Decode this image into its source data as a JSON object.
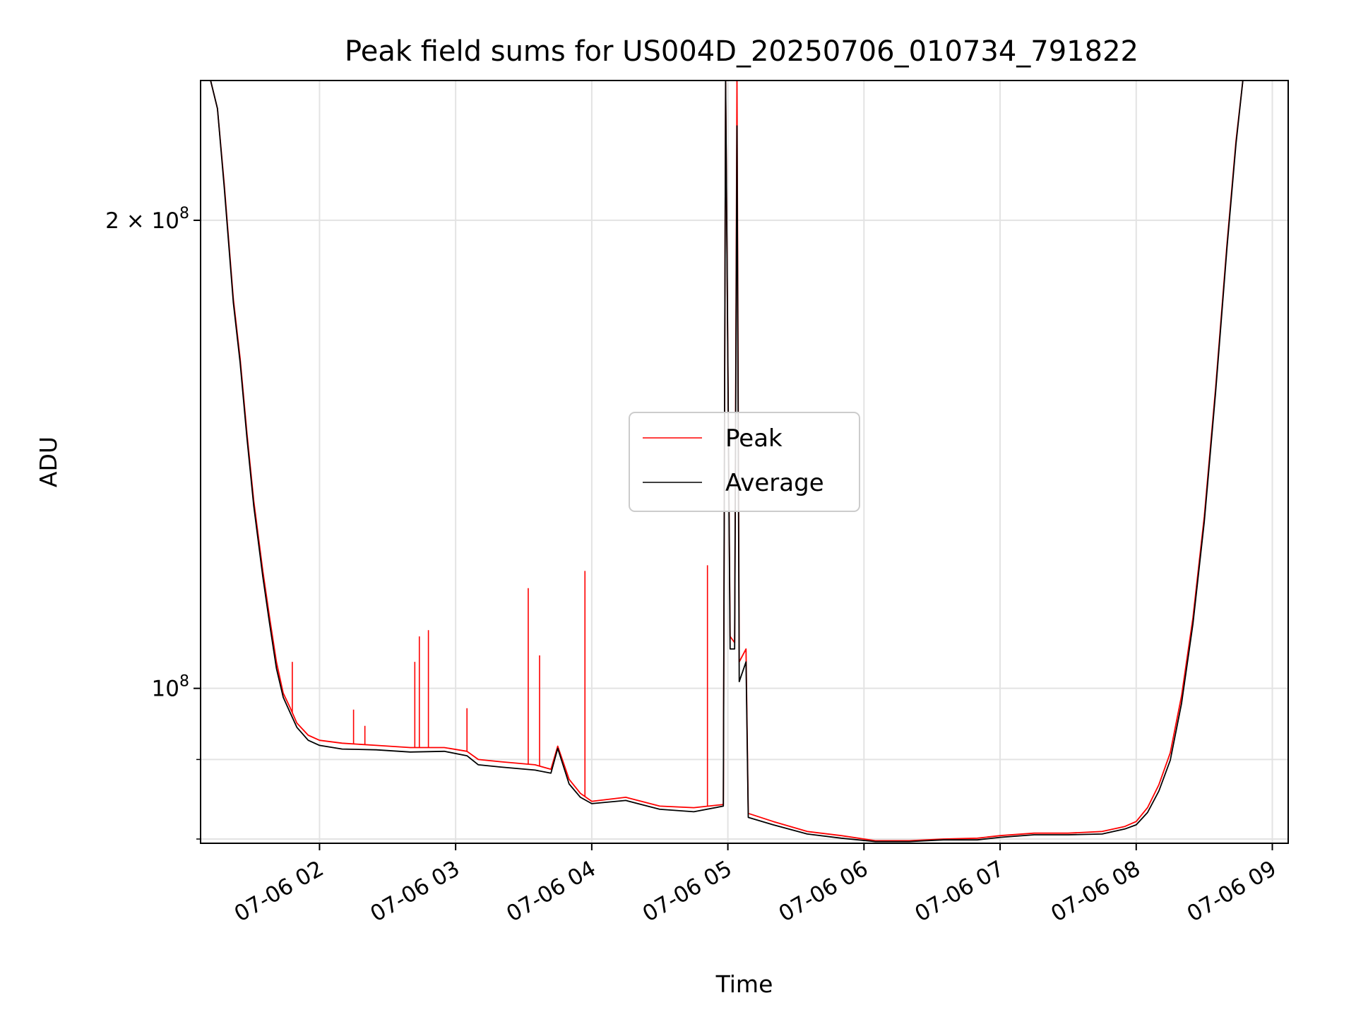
{
  "chart_data": {
    "type": "line",
    "title": "Peak field sums for US004D_20250706_010734_791822",
    "xlabel": "Time",
    "ylabel": "ADU",
    "y_scale": "log",
    "grid": true,
    "legend_position": "center",
    "xlim": [
      "2025-07-06 01:07:34",
      "2025-07-06 09:07:00"
    ],
    "ylim": [
      79500000,
      246000000
    ],
    "x_ticks": [
      {
        "value": "2025-07-06 02:00",
        "label": "07-06 02"
      },
      {
        "value": "2025-07-06 03:00",
        "label": "07-06 03"
      },
      {
        "value": "2025-07-06 04:00",
        "label": "07-06 04"
      },
      {
        "value": "2025-07-06 05:00",
        "label": "07-06 05"
      },
      {
        "value": "2025-07-06 06:00",
        "label": "07-06 06"
      },
      {
        "value": "2025-07-06 07:00",
        "label": "07-06 07"
      },
      {
        "value": "2025-07-06 08:00",
        "label": "07-06 08"
      },
      {
        "value": "2025-07-06 09:00",
        "label": "07-06 09"
      }
    ],
    "y_major_ticks": [
      {
        "value": 100000000,
        "base": "10",
        "exp": "8",
        "mult": ""
      },
      {
        "value": 200000000,
        "base": "10",
        "exp": "8",
        "mult": "2 × "
      }
    ],
    "y_minor_ticks": [
      80000000,
      90000000
    ],
    "series": [
      {
        "name": "Peak",
        "color": "#ff0000",
        "points": [
          [
            "2025-07-06 01:07:34",
            246000000
          ],
          [
            "2025-07-06 01:12:00",
            246000000
          ],
          [
            "2025-07-06 01:15:00",
            236000000
          ],
          [
            "2025-07-06 01:18:00",
            211000000
          ],
          [
            "2025-07-06 01:22:00",
            178000000
          ],
          [
            "2025-07-06 01:25:00",
            163000000
          ],
          [
            "2025-07-06 01:28:00",
            146000000
          ],
          [
            "2025-07-06 01:31:00",
            132000000
          ],
          [
            "2025-07-06 01:35:00",
            119000000
          ],
          [
            "2025-07-06 01:38:00",
            111000000
          ],
          [
            "2025-07-06 01:41:00",
            104000000
          ],
          [
            "2025-07-06 01:44:00",
            99300000
          ],
          [
            "2025-07-06 01:47:00",
            97200000
          ],
          [
            "2025-07-06 01:50:00",
            95000000
          ],
          [
            "2025-07-06 01:55:00",
            93300000
          ],
          [
            "2025-07-06 02:00:00",
            92600000
          ],
          [
            "2025-07-06 02:10:00",
            92200000
          ],
          [
            "2025-07-06 02:25:00",
            91900000
          ],
          [
            "2025-07-06 02:40:00",
            91600000
          ],
          [
            "2025-07-06 02:55:00",
            91600000
          ],
          [
            "2025-07-06 03:05:00",
            91100000
          ],
          [
            "2025-07-06 03:10:00",
            90000000
          ],
          [
            "2025-07-06 03:20:00",
            89700000
          ],
          [
            "2025-07-06 03:35:00",
            89300000
          ],
          [
            "2025-07-06 03:42:00",
            88700000
          ],
          [
            "2025-07-06 03:45:00",
            91800000
          ],
          [
            "2025-07-06 03:50:00",
            87400000
          ],
          [
            "2025-07-06 03:55:00",
            85600000
          ],
          [
            "2025-07-06 04:00:00",
            84600000
          ],
          [
            "2025-07-06 04:15:00",
            85100000
          ],
          [
            "2025-07-06 04:30:00",
            84000000
          ],
          [
            "2025-07-06 04:45:00",
            83800000
          ],
          [
            "2025-07-06 04:58:00",
            84200000
          ],
          [
            "2025-07-06 04:59:00",
            246000000
          ],
          [
            "2025-07-06 05:01:00",
            108000000
          ],
          [
            "2025-07-06 05:03:00",
            107000000
          ],
          [
            "2025-07-06 05:04:00",
            246000000
          ],
          [
            "2025-07-06 05:05:00",
            104000000
          ],
          [
            "2025-07-06 05:08:00",
            106000000
          ],
          [
            "2025-07-06 05:09:00",
            83100000
          ],
          [
            "2025-07-06 05:20:00",
            82100000
          ],
          [
            "2025-07-06 05:35:00",
            80900000
          ],
          [
            "2025-07-06 05:50:00",
            80400000
          ],
          [
            "2025-07-06 06:05:00",
            79800000
          ],
          [
            "2025-07-06 06:20:00",
            79800000
          ],
          [
            "2025-07-06 06:35:00",
            80000000
          ],
          [
            "2025-07-06 06:50:00",
            80100000
          ],
          [
            "2025-07-06 07:00:00",
            80400000
          ],
          [
            "2025-07-06 07:15:00",
            80700000
          ],
          [
            "2025-07-06 07:30:00",
            80700000
          ],
          [
            "2025-07-06 07:45:00",
            80900000
          ],
          [
            "2025-07-06 07:55:00",
            81500000
          ],
          [
            "2025-07-06 08:00:00",
            82100000
          ],
          [
            "2025-07-06 08:05:00",
            83800000
          ],
          [
            "2025-07-06 08:10:00",
            86700000
          ],
          [
            "2025-07-06 08:15:00",
            90900000
          ],
          [
            "2025-07-06 08:20:00",
            98900000
          ],
          [
            "2025-07-06 08:25:00",
            111000000
          ],
          [
            "2025-07-06 08:30:00",
            129000000
          ],
          [
            "2025-07-06 08:35:00",
            156000000
          ],
          [
            "2025-07-06 08:40:00",
            193000000
          ],
          [
            "2025-07-06 08:44:00",
            225000000
          ],
          [
            "2025-07-06 08:47:00",
            246000000
          ]
        ],
        "spikes": [
          [
            "2025-07-06 01:48:00",
            104000000
          ],
          [
            "2025-07-06 02:15:00",
            96900000
          ],
          [
            "2025-07-06 02:20:00",
            94600000
          ],
          [
            "2025-07-06 02:42:00",
            104000000
          ],
          [
            "2025-07-06 02:44:00",
            108000000
          ],
          [
            "2025-07-06 02:48:00",
            109000000
          ],
          [
            "2025-07-06 03:05:00",
            97100000
          ],
          [
            "2025-07-06 03:32:00",
            116000000
          ],
          [
            "2025-07-06 03:37:00",
            105000000
          ],
          [
            "2025-07-06 03:57:00",
            119000000
          ],
          [
            "2025-07-06 04:51:00",
            120000000
          ]
        ]
      },
      {
        "name": "Average",
        "color": "#000000",
        "points": [
          [
            "2025-07-06 01:07:34",
            246000000
          ],
          [
            "2025-07-06 01:12:00",
            246000000
          ],
          [
            "2025-07-06 01:15:00",
            236000000
          ],
          [
            "2025-07-06 01:18:00",
            210000000
          ],
          [
            "2025-07-06 01:22:00",
            177000000
          ],
          [
            "2025-07-06 01:25:00",
            162000000
          ],
          [
            "2025-07-06 01:28:00",
            145000000
          ],
          [
            "2025-07-06 01:31:00",
            131000000
          ],
          [
            "2025-07-06 01:35:00",
            118000000
          ],
          [
            "2025-07-06 01:38:00",
            110000000
          ],
          [
            "2025-07-06 01:41:00",
            103000000
          ],
          [
            "2025-07-06 01:44:00",
            98700000
          ],
          [
            "2025-07-06 01:47:00",
            96500000
          ],
          [
            "2025-07-06 01:50:00",
            94400000
          ],
          [
            "2025-07-06 01:55:00",
            92600000
          ],
          [
            "2025-07-06 02:00:00",
            91900000
          ],
          [
            "2025-07-06 02:10:00",
            91400000
          ],
          [
            "2025-07-06 02:25:00",
            91300000
          ],
          [
            "2025-07-06 02:40:00",
            91000000
          ],
          [
            "2025-07-06 02:55:00",
            91100000
          ],
          [
            "2025-07-06 03:05:00",
            90500000
          ],
          [
            "2025-07-06 03:10:00",
            89300000
          ],
          [
            "2025-07-06 03:20:00",
            89000000
          ],
          [
            "2025-07-06 03:35:00",
            88600000
          ],
          [
            "2025-07-06 03:42:00",
            88200000
          ],
          [
            "2025-07-06 03:45:00",
            91500000
          ],
          [
            "2025-07-06 03:50:00",
            86800000
          ],
          [
            "2025-07-06 03:55:00",
            85100000
          ],
          [
            "2025-07-06 04:00:00",
            84300000
          ],
          [
            "2025-07-06 04:15:00",
            84700000
          ],
          [
            "2025-07-06 04:30:00",
            83600000
          ],
          [
            "2025-07-06 04:45:00",
            83300000
          ],
          [
            "2025-07-06 04:58:00",
            84000000
          ],
          [
            "2025-07-06 04:59:00",
            246000000
          ],
          [
            "2025-07-06 05:01:00",
            106000000
          ],
          [
            "2025-07-06 05:03:00",
            106000000
          ],
          [
            "2025-07-06 05:04:00",
            230000000
          ],
          [
            "2025-07-06 05:05:00",
            101000000
          ],
          [
            "2025-07-06 05:08:00",
            104000000
          ],
          [
            "2025-07-06 05:09:00",
            82600000
          ],
          [
            "2025-07-06 05:20:00",
            81700000
          ],
          [
            "2025-07-06 05:35:00",
            80600000
          ],
          [
            "2025-07-06 05:50:00",
            80100000
          ],
          [
            "2025-07-06 06:05:00",
            79700000
          ],
          [
            "2025-07-06 06:20:00",
            79700000
          ],
          [
            "2025-07-06 06:35:00",
            79900000
          ],
          [
            "2025-07-06 06:50:00",
            79900000
          ],
          [
            "2025-07-06 07:00:00",
            80200000
          ],
          [
            "2025-07-06 07:15:00",
            80500000
          ],
          [
            "2025-07-06 07:30:00",
            80500000
          ],
          [
            "2025-07-06 07:45:00",
            80600000
          ],
          [
            "2025-07-06 07:55:00",
            81200000
          ],
          [
            "2025-07-06 08:00:00",
            81700000
          ],
          [
            "2025-07-06 08:05:00",
            83200000
          ],
          [
            "2025-07-06 08:10:00",
            85900000
          ],
          [
            "2025-07-06 08:15:00",
            89900000
          ],
          [
            "2025-07-06 08:20:00",
            97800000
          ],
          [
            "2025-07-06 08:25:00",
            110000000
          ],
          [
            "2025-07-06 08:30:00",
            128000000
          ],
          [
            "2025-07-06 08:35:00",
            155000000
          ],
          [
            "2025-07-06 08:40:00",
            192000000
          ],
          [
            "2025-07-06 08:44:00",
            224000000
          ],
          [
            "2025-07-06 08:47:00",
            246000000
          ]
        ]
      }
    ]
  }
}
